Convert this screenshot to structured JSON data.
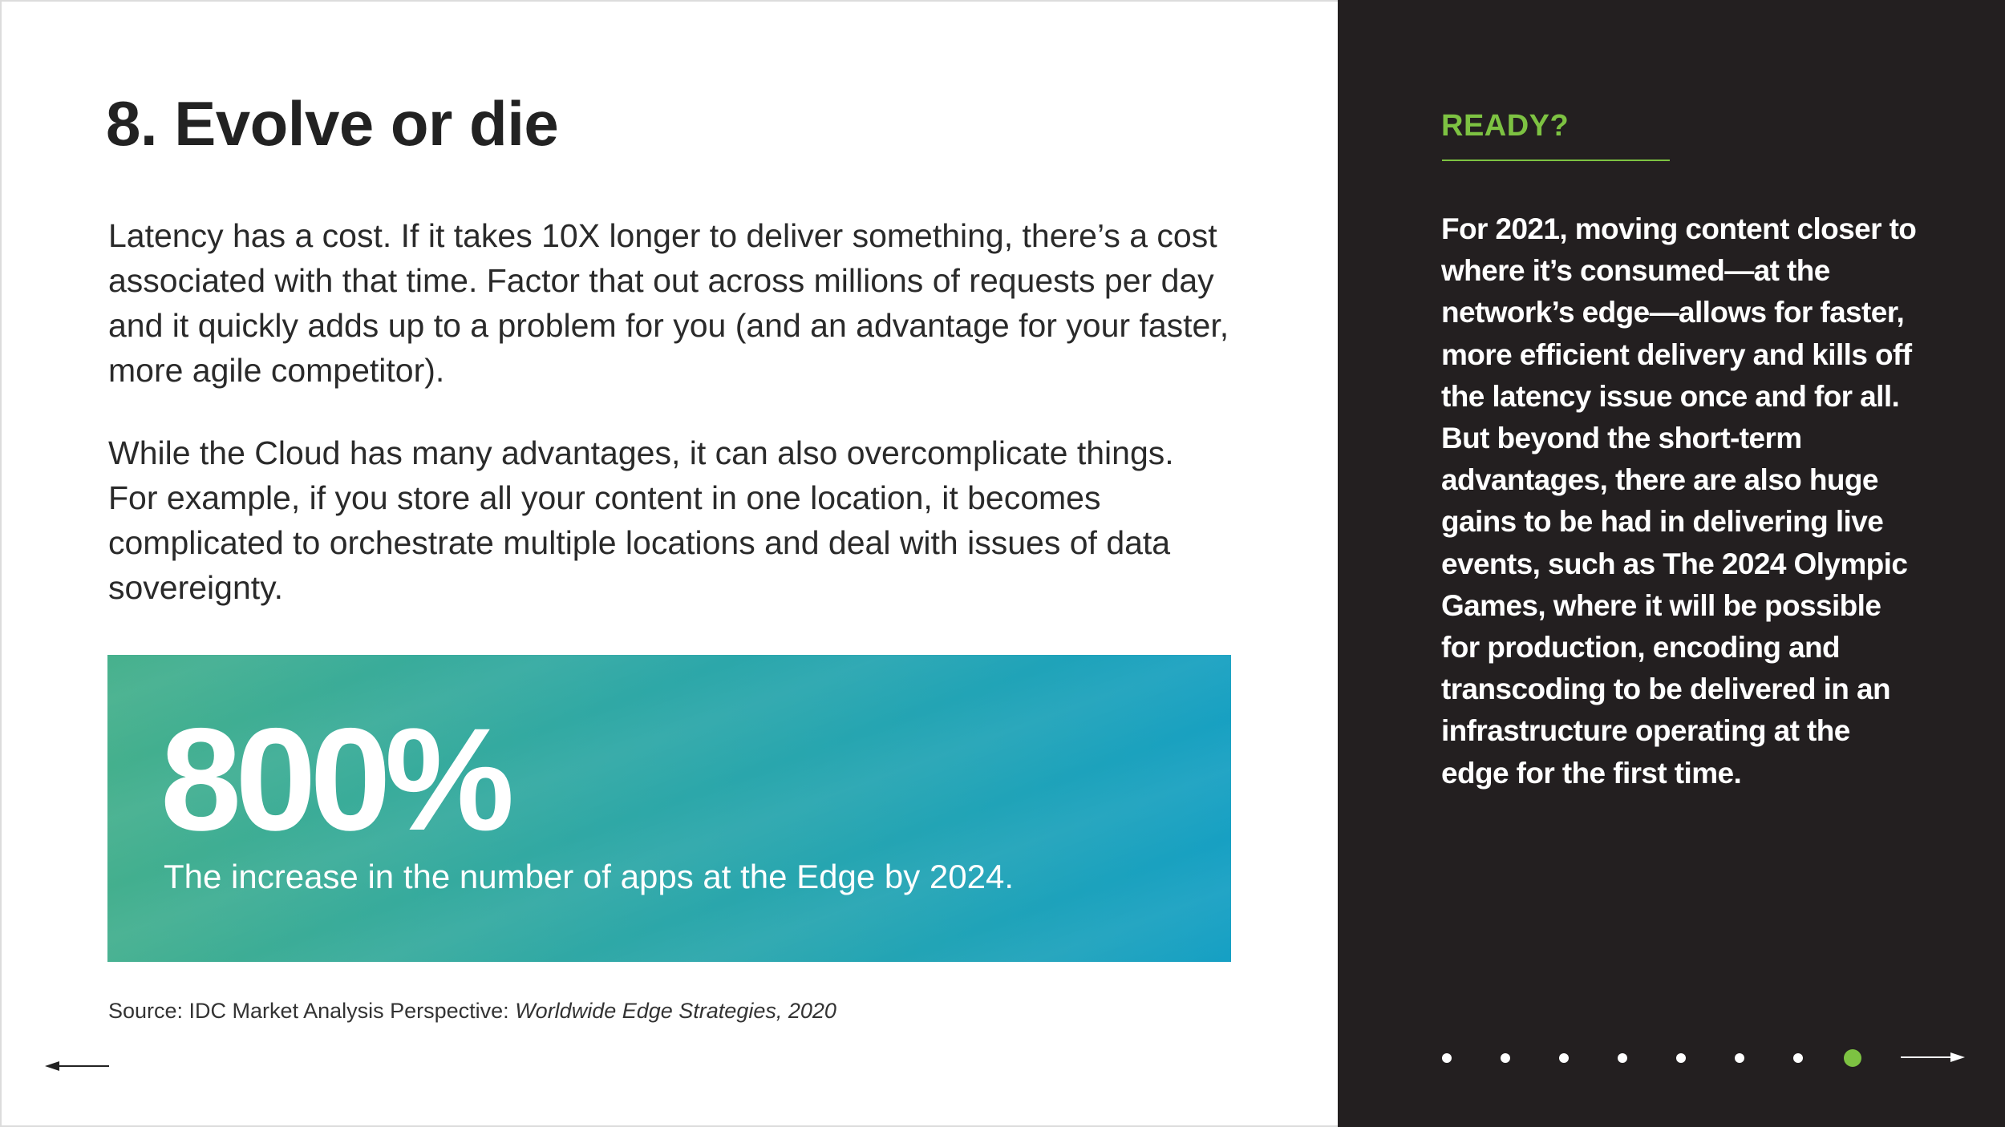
{
  "slide": {
    "title": "8. Evolve or die",
    "paragraphs": [
      "Latency has a cost. If it takes 10X longer to deliver something, there’s a cost associated with that time. Factor that out across millions of requests per day and it quickly adds up to a problem for you (and an advantage for your faster, more agile competitor).",
      "While the Cloud has many advantages, it can also overcomplicate things. For example, if you store all your content in one location, it becomes complicated to orchestrate multiple locations and deal with issues of data sovereignty."
    ],
    "stat": {
      "value": "800%",
      "caption": "The increase in the number of apps at the Edge by 2024."
    },
    "source": {
      "prefix": "Source: IDC Market Analysis Perspective: ",
      "title": "Worldwide Edge Strategies, 2020"
    }
  },
  "sidebar": {
    "heading": "READY?",
    "text": "For 2021, moving content closer to where it’s consumed—at the network’s edge—allows for faster, more efficient delivery and kills off the latency issue once and for all.  But beyond the short-term advantages, there are also huge gains to be had in delivering live events, such as The 2024 Olympic Games, where it will be possible for production, encoding and transcoding to be delivered in an infrastructure operating at the edge for the first time."
  },
  "navigation": {
    "total_pages": 8,
    "current_page": 8
  },
  "colors": {
    "accent_green": "#7dc242",
    "panel_background": "#231f20",
    "stat_gradient_start": "#45b08c",
    "stat_gradient_end": "#16a0c4"
  }
}
